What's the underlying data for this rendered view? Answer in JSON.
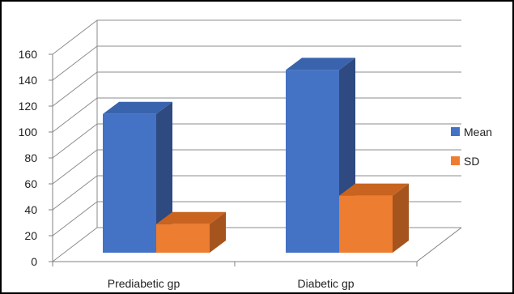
{
  "chart_data": {
    "type": "bar",
    "style": "3d-column",
    "categories": [
      "Prediabetic gp",
      "Diabetic gp"
    ],
    "series": [
      {
        "name": "Mean",
        "values": [
          107,
          141
        ],
        "color": "#4472C4",
        "side_color": "#2E4A80",
        "top_color": "#3A63AD"
      },
      {
        "name": "SD",
        "values": [
          22,
          44
        ],
        "color": "#ED7D31",
        "side_color": "#A6541D",
        "top_color": "#C86420"
      }
    ],
    "ylim": [
      0,
      160
    ],
    "yticks": [
      0,
      20,
      40,
      60,
      80,
      100,
      120,
      140,
      160
    ],
    "grid": true,
    "legend": "right"
  }
}
